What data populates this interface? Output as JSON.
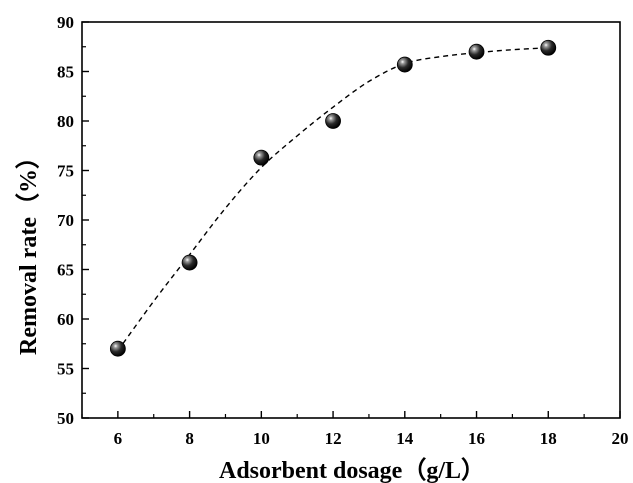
{
  "chart_data": {
    "type": "scatter",
    "title": "",
    "xlabel": "Adsorbent dosage（g/L）",
    "ylabel": "Removal rate（%）",
    "xlim": [
      5,
      20
    ],
    "ylim": [
      50,
      90
    ],
    "xticks": [
      6,
      8,
      10,
      12,
      14,
      16,
      18,
      20
    ],
    "yticks": [
      50,
      55,
      60,
      65,
      70,
      75,
      80,
      85,
      90
    ],
    "grid": false,
    "legend": "none",
    "series": [
      {
        "x": [
          6,
          8,
          10,
          12,
          14,
          16,
          18
        ],
        "values": [
          57.0,
          65.7,
          76.3,
          80.0,
          85.7,
          87.0,
          87.4
        ]
      }
    ],
    "fit_curve": {
      "style": "dashed",
      "x": [
        6,
        7,
        8,
        9,
        10,
        11,
        12,
        13,
        14,
        15,
        16,
        17,
        18
      ],
      "y": [
        56.8,
        61.8,
        66.5,
        71.2,
        75.3,
        78.5,
        81.4,
        84.0,
        85.8,
        86.5,
        86.9,
        87.2,
        87.4
      ]
    },
    "colors": {
      "marker": "#000000",
      "axis": "#000000",
      "fit_line": "#000000",
      "background": "#ffffff"
    }
  }
}
